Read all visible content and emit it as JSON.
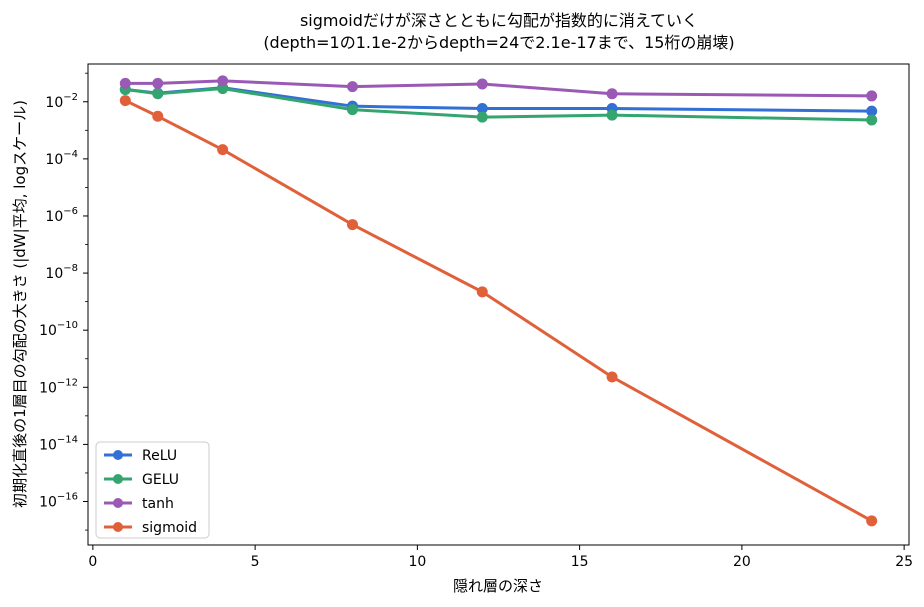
{
  "chart_data": {
    "type": "line",
    "title_lines": [
      "sigmoidだけが深さとともに勾配が指数的に消えていく",
      "(depth=1の1.1e-2からdepth=24で2.1e-17まで、15桁の崩壊)"
    ],
    "xlabel": "隠れ層の深さ",
    "ylabel": "初期化直後の1層目の勾配の大きさ (|dW|平均, logスケール)",
    "x": [
      1,
      2,
      4,
      8,
      12,
      16,
      24
    ],
    "xlim": [
      -0.15,
      25.15
    ],
    "ylim": [
      3e-18,
      0.21
    ],
    "yscale": "log",
    "xticks": [
      0,
      5,
      10,
      15,
      20,
      25
    ],
    "yticks": [
      {
        "exp": -2,
        "base": "10",
        "power": "−2"
      },
      {
        "exp": -4,
        "base": "10",
        "power": "−4"
      },
      {
        "exp": -6,
        "base": "10",
        "power": "−6"
      },
      {
        "exp": -8,
        "base": "10",
        "power": "−8"
      },
      {
        "exp": -10,
        "base": "10",
        "power": "−10"
      },
      {
        "exp": -12,
        "base": "10",
        "power": "−12"
      },
      {
        "exp": -14,
        "base": "10",
        "power": "−14"
      },
      {
        "exp": -16,
        "base": "10",
        "power": "−16"
      }
    ],
    "grid": false,
    "legend_position": "lower-left",
    "series": [
      {
        "name": "ReLU",
        "color": "#3370d6",
        "values": [
          0.027,
          0.02,
          0.031,
          0.007,
          0.0058,
          0.0058,
          0.0047
        ]
      },
      {
        "name": "GELU",
        "color": "#34a56f",
        "values": [
          0.027,
          0.019,
          0.029,
          0.0053,
          0.0029,
          0.0034,
          0.0023
        ]
      },
      {
        "name": "tanh",
        "color": "#9b59b6",
        "values": [
          0.044,
          0.044,
          0.054,
          0.034,
          0.042,
          0.019,
          0.016
        ]
      },
      {
        "name": "sigmoid",
        "color": "#e0603a",
        "values": [
          0.011,
          0.0031,
          0.00021,
          5e-07,
          2.2e-09,
          2.3e-12,
          2.1e-17
        ]
      }
    ]
  }
}
